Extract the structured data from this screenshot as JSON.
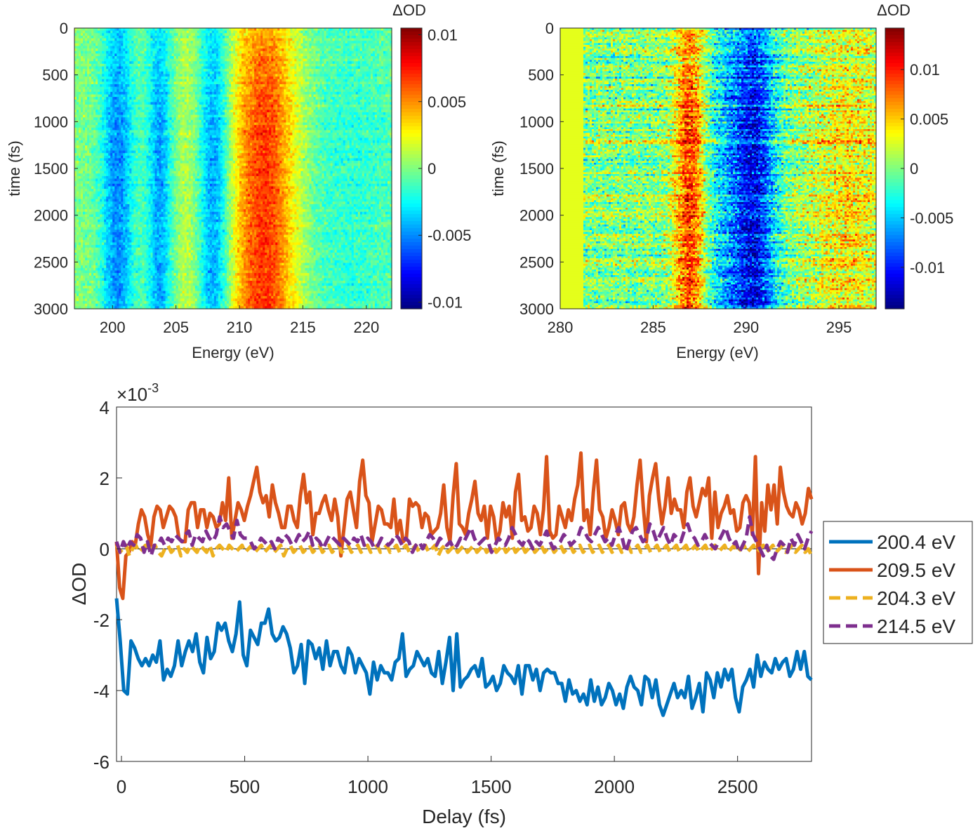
{
  "figure": {
    "panels": [
      {
        "id": "map-a",
        "type": "heatmap",
        "xlabel": "Energy (eV)",
        "ylabel": "time (fs)",
        "xlim": [
          197,
          222
        ],
        "ylim": [
          3000,
          0
        ],
        "xticks": [
          200,
          205,
          210,
          215,
          220
        ],
        "yticks": [
          0,
          500,
          1000,
          1500,
          2000,
          2500,
          3000
        ],
        "colorbar": {
          "title": "ΔOD",
          "clim": [
            -0.0105,
            0.0105
          ],
          "ticks": [
            {
              "value": 0.01,
              "label": "0.01"
            },
            {
              "value": 0.005,
              "label": "0.005"
            },
            {
              "value": 0,
              "label": "0"
            },
            {
              "value": -0.005,
              "label": "-0.005"
            },
            {
              "value": -0.01,
              "label": "-0.01"
            }
          ]
        },
        "features": [
          {
            "center_eV": 200.4,
            "width_eV": 0.9,
            "amplitude": -0.0045
          },
          {
            "center_eV": 203.7,
            "width_eV": 0.7,
            "amplitude": -0.004
          },
          {
            "center_eV": 208.0,
            "width_eV": 0.9,
            "amplitude": -0.0045
          },
          {
            "center_eV": 206.0,
            "width_eV": 0.8,
            "amplitude": 0.0012
          },
          {
            "center_eV": 212.0,
            "width_eV": 1.9,
            "amplitude": 0.0065
          },
          {
            "center_eV": 218.5,
            "width_eV": 3.5,
            "amplitude": -0.0015
          }
        ]
      },
      {
        "id": "map-b",
        "type": "heatmap",
        "xlabel": "Energy (eV)",
        "ylabel": "time (fs)",
        "xlim": [
          280,
          297
        ],
        "ylim": [
          3000,
          0
        ],
        "xticks": [
          280,
          285,
          290,
          295
        ],
        "yticks": [
          0,
          500,
          1000,
          1500,
          2000,
          2500,
          3000
        ],
        "colorbar": {
          "title": "ΔOD",
          "clim": [
            -0.0142,
            0.0142
          ],
          "ticks": [
            {
              "value": 0.01,
              "label": "0.01"
            },
            {
              "value": 0.005,
              "label": "0.005"
            },
            {
              "value": 0,
              "label": "0"
            },
            {
              "value": -0.005,
              "label": "-0.005"
            },
            {
              "value": -0.01,
              "label": "-0.01"
            }
          ]
        },
        "features": [
          {
            "center_eV": 287.0,
            "width_eV": 0.6,
            "amplitude": 0.009
          },
          {
            "center_eV": 290.5,
            "width_eV": 0.8,
            "amplitude": -0.008
          },
          {
            "center_eV": 289.0,
            "width_eV": 1.2,
            "amplitude": -0.004
          },
          {
            "center_eV": 295.5,
            "width_eV": 1.5,
            "amplitude": 0.0035
          }
        ]
      }
    ],
    "lineplot": {
      "type": "line",
      "xlabel": "Delay (fs)",
      "ylabel": "ΔOD",
      "exponent_label": "×10",
      "exponent_power": "-3",
      "xlim": [
        -20,
        2800
      ],
      "ylim": [
        -6,
        4
      ],
      "xticks": [
        0,
        500,
        1000,
        1500,
        2000,
        2500
      ],
      "yticks": [
        -6,
        -4,
        -2,
        0,
        2,
        4
      ],
      "series": [
        {
          "name": "200.4 eV",
          "color": "#0072BD",
          "dashed": false,
          "values": [
            -1.4,
            -2.6,
            -4.0,
            -4.1,
            -2.6,
            -2.8,
            -3.1,
            -3.3,
            -3.1,
            -3.3,
            -3.0,
            -3.2,
            -2.6,
            -3.7,
            -3.4,
            -3.6,
            -3.3,
            -2.6,
            -3.3,
            -2.9,
            -2.6,
            -2.9,
            -2.4,
            -3.2,
            -3.5,
            -2.5,
            -3.1,
            -2.9,
            -2.1,
            -2.3,
            -2.1,
            -2.6,
            -2.9,
            -2.4,
            -1.5,
            -3.0,
            -3.3,
            -2.3,
            -2.5,
            -2.7,
            -2.1,
            -2.1,
            -1.7,
            -2.4,
            -2.6,
            -2.5,
            -2.2,
            -2.4,
            -2.8,
            -3.5,
            -3.3,
            -2.7,
            -3.8,
            -2.6,
            -2.7,
            -3.1,
            -2.8,
            -3.4,
            -2.6,
            -3.3,
            -2.9,
            -2.9,
            -3.3,
            -3.5,
            -2.8,
            -3.0,
            -3.5,
            -3.1,
            -3.3,
            -3.5,
            -4.1,
            -3.2,
            -3.7,
            -3.3,
            -3.5,
            -3.5,
            -3.7,
            -3.2,
            -3.1,
            -2.4,
            -3.6,
            -3.4,
            -3.3,
            -2.9,
            -3.1,
            -3.3,
            -3.1,
            -3.5,
            -3.6,
            -2.9,
            -3.8,
            -3.2,
            -2.5,
            -4.0,
            -2.4,
            -3.9,
            -3.7,
            -3.6,
            -3.4,
            -3.3,
            -3.6,
            -3.1,
            -3.9,
            -3.8,
            -3.6,
            -4.0,
            -3.8,
            -3.3,
            -3.5,
            -3.6,
            -3.8,
            -3.3,
            -4.1,
            -3.3,
            -3.3,
            -3.7,
            -3.4,
            -4.0,
            -3.5,
            -3.4,
            -3.5,
            -3.5,
            -3.8,
            -3.8,
            -4.3,
            -3.7,
            -4.1,
            -4.0,
            -4.3,
            -4.1,
            -4.4,
            -3.7,
            -4.3,
            -3.9,
            -4.4,
            -4.2,
            -3.8,
            -4.0,
            -4.4,
            -4.1,
            -4.5,
            -3.9,
            -3.6,
            -3.9,
            -4.0,
            -4.4,
            -3.6,
            -3.7,
            -4.2,
            -3.7,
            -4.4,
            -4.7,
            -4.4,
            -4.1,
            -3.8,
            -4.2,
            -4.0,
            -4.2,
            -3.6,
            -4.5,
            -4.2,
            -3.8,
            -4.6,
            -3.5,
            -3.7,
            -4.2,
            -3.5,
            -3.9,
            -3.4,
            -3.7,
            -3.4,
            -4.2,
            -4.6,
            -3.9,
            -3.7,
            -3.4,
            -3.9,
            -3.0,
            -3.6,
            -3.2,
            -3.4,
            -3.5,
            -3.1,
            -3.4,
            -3.2,
            -3.1,
            -3.6,
            -3.4,
            -2.9,
            -3.4,
            -2.9,
            -3.6,
            -3.7
          ]
        },
        {
          "name": "209.5 eV",
          "color": "#D95319",
          "dashed": false,
          "values": [
            0.2,
            -1.1,
            -1.4,
            -0.2,
            -0.1,
            0.2,
            0.1,
            0.7,
            1.1,
            0.9,
            0.4,
            0.1,
            0.9,
            1.2,
            1.1,
            0.6,
            0.9,
            1.2,
            1.1,
            0.9,
            0.3,
            0.2,
            0.2,
            1.1,
            1.3,
            1.3,
            0.6,
            1.1,
            1.1,
            0.6,
            1.0,
            0.9,
            0.6,
            0.7,
            1.3,
            0.8,
            2.0,
            0.3,
            0.8,
            1.3,
            1.1,
            0.8,
            1.2,
            1.5,
            1.9,
            2.3,
            1.6,
            1.3,
            1.5,
            0.9,
            1.8,
            1.3,
            1.0,
            0.6,
            0.6,
            1.2,
            1.2,
            0.8,
            0.6,
            1.5,
            2.1,
            1.3,
            1.6,
            0.4,
            1.0,
            1.0,
            1.3,
            1.5,
            1.1,
            0.8,
            1.4,
            0.9,
            -0.2,
            0.6,
            1.4,
            1.6,
            1.1,
            0.6,
            1.9,
            2.5,
            1.5,
            1.3,
            0.2,
            0.7,
            1.2,
            1.1,
            0.7,
            0.7,
            0.6,
            1.4,
            0.4,
            0.8,
            0.2,
            0.3,
            1.4,
            1.2,
            1.3,
            1.2,
            0.6,
            1.0,
            0.9,
            0.4,
            0.5,
            0.6,
            1.0,
            1.8,
            0.6,
            0.2,
            1.5,
            2.4,
            0.7,
            0.6,
            0.4,
            1.0,
            1.4,
            1.9,
            1.0,
            0.8,
            1.2,
            0.3,
            1.2,
            0.9,
            0.2,
            0.5,
            1.3,
            0.9,
            1.2,
            0.3,
            1.6,
            2.1,
            0.8,
            0.9,
            0.5,
            0.6,
            1.2,
            1.0,
            0.4,
            1.1,
            2.6,
            0.5,
            0.3,
            0.4,
            1.2,
            0.9,
            0.6,
            1.1,
            0.8,
            1.4,
            1.8,
            2.7,
            0.8,
            1.1,
            0.4,
            1.6,
            2.5,
            1.1,
            0.9,
            0.3,
            0.6,
            1.1,
            0.8,
            0.4,
            1.2,
            1.3,
            0.7,
            0.5,
            0.9,
            1.8,
            2.5,
            1.2,
            0.2,
            1.5,
            2.0,
            2.4,
            1.4,
            0.7,
            1.2,
            2.0,
            1.0,
            1.4,
            1.1,
            1.1,
            0.6,
            1.6,
            2.0,
            1.2,
            0.9,
            1.3,
            1.7,
            1.5,
            2.0,
            0.3,
            1.6,
            0.6,
            1.0,
            1.2,
            1.5,
            1.0,
            1.1,
            0.5,
            0.6,
            1.3,
            1.5,
            1.3,
            0.4,
            2.6,
            -0.7,
            1.3,
            0.5,
            1.8,
            1.1,
            1.8,
            0.7,
            2.3,
            1.6,
            1.2,
            1.0,
            0.9,
            1.3,
            1.1,
            0.7,
            1.0,
            1.7,
            1.4
          ]
        },
        {
          "name": "204.3 eV",
          "color": "#EDB120",
          "dashed": true,
          "values": [
            0.1,
            -0.1,
            0.0,
            0.1,
            -0.2,
            0.0,
            0.1,
            -0.1,
            0.0,
            0.1,
            -0.1,
            0.0,
            0.1,
            -0.1,
            -0.2,
            0.0,
            0.1,
            -0.1,
            0.0,
            0.1,
            -0.2,
            0.0,
            -0.1,
            0.1,
            0.0,
            -0.1,
            0.1,
            0.0,
            -0.1,
            0.1,
            -0.2,
            0.0,
            0.1,
            0.0,
            -0.1,
            0.1,
            0.0,
            -0.1,
            0.0,
            0.1,
            -0.1,
            0.0,
            0.1,
            -0.1,
            0.0,
            0.1,
            -0.1,
            0.0,
            0.1,
            -0.1,
            0.0,
            0.1,
            -0.2,
            0.0,
            0.1,
            -0.1,
            0.0,
            0.1,
            -0.1,
            0.0,
            0.1,
            -0.1,
            0.0,
            0.1,
            -0.1,
            0.0,
            0.1,
            -0.1,
            0.0,
            0.1,
            -0.1,
            0.0,
            0.1,
            -0.1,
            0.0,
            0.1,
            -0.1,
            0.0,
            0.1,
            -0.1,
            0.0,
            0.1,
            -0.1,
            0.0,
            0.1,
            -0.1,
            0.0,
            0.1,
            -0.1,
            0.0,
            0.1,
            -0.1,
            0.0,
            0.1,
            -0.1,
            0.0,
            0.1,
            -0.1,
            0.0,
            0.1,
            -0.2,
            0.0,
            0.1,
            -0.1,
            0.0,
            0.1,
            -0.1,
            0.0,
            0.1,
            -0.1,
            0.0,
            0.1,
            -0.1,
            0.0,
            0.1,
            -0.1,
            0.0,
            0.1,
            -0.1,
            0.0,
            0.1,
            -0.1,
            0.0,
            0.1,
            -0.1,
            0.0,
            0.1,
            -0.1,
            0.0,
            0.1,
            -0.1,
            0.0,
            0.1,
            -0.1,
            0.0,
            0.1,
            -0.1,
            0.0,
            0.1,
            -0.1,
            0.0,
            0.1,
            -0.1,
            0.0,
            0.1,
            -0.1,
            0.0,
            0.1,
            -0.1,
            0.0,
            0.1,
            -0.1,
            0.0,
            0.1,
            -0.1,
            0.0,
            0.1,
            -0.1,
            0.0,
            0.1,
            -0.1,
            0.0,
            0.1,
            -0.1,
            0.0,
            0.1,
            -0.1,
            0.0,
            0.1,
            -0.1,
            0.0,
            0.1,
            -0.1,
            0.0,
            0.1,
            -0.1,
            0.0,
            0.1,
            -0.1,
            0.0,
            0.1,
            -0.1,
            0.0,
            0.1,
            -0.1,
            0.0,
            0.1,
            -0.1,
            0.0,
            0.1,
            -0.1,
            0.0,
            0.1,
            -0.1,
            0.0,
            0.1,
            -0.1,
            0.0,
            0.1,
            -0.1,
            0.0,
            0.1,
            -0.1,
            0.0,
            0.1,
            -0.1,
            0.0,
            0.1,
            -0.1,
            0.0,
            0.1,
            -0.1,
            0.0,
            0.1,
            -0.1,
            0.0,
            -0.2
          ]
        },
        {
          "name": "214.5 eV",
          "color": "#7E2F8E",
          "dashed": true,
          "values": [
            0.2,
            -0.1,
            0.2,
            0.0,
            0.2,
            0.1,
            0.4,
            0.3,
            -0.1,
            0.2,
            -0.2,
            0.1,
            0.1,
            0.3,
            0.1,
            0.3,
            0.2,
            0.4,
            0.3,
            0.2,
            0.4,
            0.5,
            0.1,
            0.4,
            0.3,
            0.2,
            0.5,
            0.3,
            0.2,
            0.4,
            0.9,
            0.6,
            0.7,
            0.5,
            0.3,
            0.8,
            0.4,
            0.3,
            0.3,
            0.2,
            0.0,
            0.1,
            0.3,
            0.2,
            0.1,
            0.2,
            0.0,
            0.3,
            0.2,
            0.4,
            0.3,
            0.1,
            0.2,
            0.4,
            0.2,
            0.3,
            0.5,
            0.1,
            0.3,
            0.2,
            0.0,
            0.2,
            0.4,
            0.3,
            0.2,
            0.1,
            0.3,
            0.2,
            0.1,
            0.3,
            0.2,
            0.4,
            0.1,
            0.3,
            0.2,
            0.0,
            0.1,
            0.3,
            0.2,
            0.1,
            0.2,
            0.4,
            0.3,
            0.1,
            0.3,
            0.2,
            -0.1,
            0.1,
            0.2,
            0.0,
            0.2,
            0.4,
            0.3,
            0.1,
            0.3,
            0.2,
            0.1,
            0.2,
            0.0,
            0.1,
            0.3,
            0.2,
            0.4,
            0.6,
            0.3,
            0.1,
            0.2,
            0.3,
            0.2,
            -0.1,
            0.1,
            0.3,
            0.2,
            0.1,
            0.3,
            0.6,
            0.4,
            0.2,
            0.1,
            0.3,
            0.2,
            0.0,
            0.2,
            0.1,
            0.3,
            0.5,
            0.2,
            0.0,
            0.1,
            0.2,
            0.4,
            0.3,
            0.1,
            0.2,
            0.3,
            0.6,
            0.5,
            0.3,
            0.2,
            0.4,
            0.6,
            0.4,
            0.2,
            0.3,
            0.1,
            0.4,
            0.6,
            0.3,
            -0.1,
            0.2,
            0.5,
            0.6,
            0.4,
            0.2,
            0.3,
            0.7,
            0.5,
            0.2,
            0.4,
            0.6,
            0.3,
            0.1,
            0.4,
            0.3,
            0.2,
            0.5,
            0.7,
            0.4,
            0.3,
            0.1,
            0.2,
            0.4,
            0.2,
            0.1,
            0.0,
            0.2,
            0.4,
            0.6,
            0.3,
            0.1,
            0.2,
            -0.1,
            0.1,
            0.3,
            0.9,
            0.4,
            0.2,
            0.0,
            -0.2,
            0.1,
            -0.2,
            -0.3,
            0.0,
            0.2,
            0.1,
            -0.1,
            0.3,
            0.1,
            0.4,
            0.2,
            0.0,
            0.3,
            0.5
          ]
        }
      ]
    }
  }
}
